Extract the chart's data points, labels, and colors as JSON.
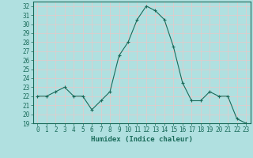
{
  "x": [
    0,
    1,
    2,
    3,
    4,
    5,
    6,
    7,
    8,
    9,
    10,
    11,
    12,
    13,
    14,
    15,
    16,
    17,
    18,
    19,
    20,
    21,
    22,
    23
  ],
  "y": [
    22.0,
    22.0,
    22.5,
    23.0,
    22.0,
    22.0,
    20.5,
    21.5,
    22.5,
    26.5,
    28.0,
    30.5,
    32.0,
    31.5,
    30.5,
    27.5,
    23.5,
    21.5,
    21.5,
    22.5,
    22.0,
    22.0,
    19.5,
    19.0
  ],
  "line_color": "#1a6b5a",
  "marker": "+",
  "bg_color": "#b0e0e0",
  "grid_color": "#d0f0f0",
  "xlabel": "Humidex (Indice chaleur)",
  "xlim": [
    -0.5,
    23.5
  ],
  "ylim": [
    19,
    32.5
  ],
  "yticks": [
    19,
    20,
    21,
    22,
    23,
    24,
    25,
    26,
    27,
    28,
    29,
    30,
    31,
    32
  ],
  "xticks": [
    0,
    1,
    2,
    3,
    4,
    5,
    6,
    7,
    8,
    9,
    10,
    11,
    12,
    13,
    14,
    15,
    16,
    17,
    18,
    19,
    20,
    21,
    22,
    23
  ],
  "tick_color": "#1a6b5a",
  "label_fontsize": 6.5,
  "tick_fontsize": 5.5
}
